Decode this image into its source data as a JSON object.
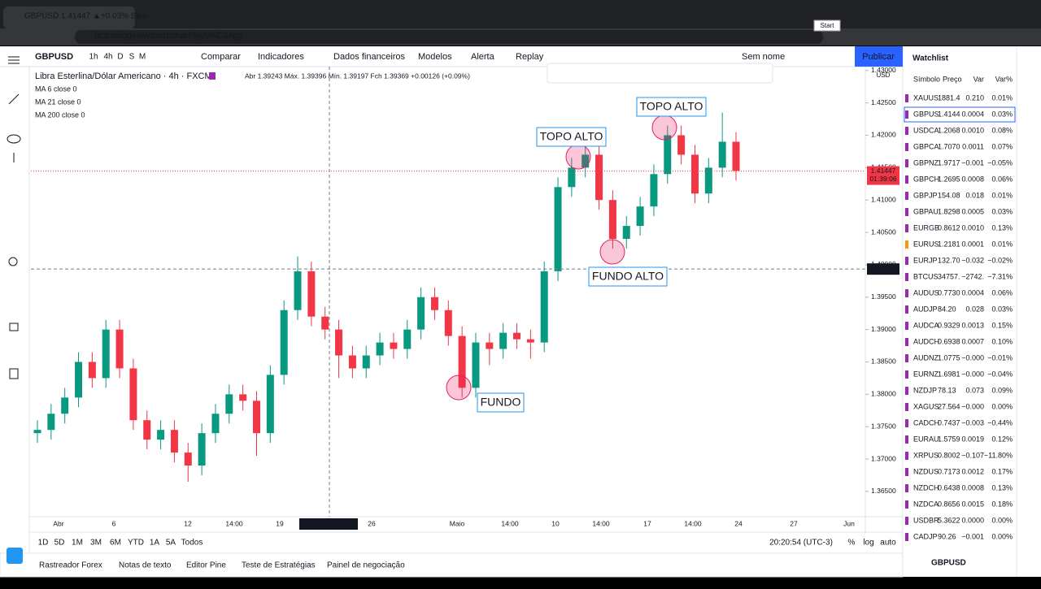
{
  "browser": {
    "tab_title": "GBPUSD 1.41447 ▲+0.03% Sem",
    "url": "br.tradingview.com/chart/NySKCSNg/",
    "tooltip": "Start"
  },
  "toolbar": {
    "symbol": "GBPUSD",
    "intervals": [
      "1h",
      "4h",
      "D",
      "S",
      "M"
    ],
    "buttons": [
      "Comparar",
      "Indicadores",
      "Dados financeiros",
      "Modelos",
      "Alerta",
      "Replay"
    ],
    "layout_name": "Sem nome",
    "publish": "Publicar"
  },
  "legend": {
    "title": "Libra Esterlina/Dólar Americano · 4h · FXCM",
    "ohlc": "Abr 1.39243  Máx. 1.39396  Mín. 1.39197  Fch 1.39369  +0.00126 (+0.09%)",
    "indicators": [
      "MA 6 close 0",
      "MA 21 close 0",
      "MA 200 close 0"
    ]
  },
  "chart": {
    "type": "candlestick",
    "ylim": [
      1.3611,
      1.4306
    ],
    "axis_unit": "USD",
    "yticks": [
      {
        "value": 1.365,
        "label": "1.36500"
      },
      {
        "value": 1.37,
        "label": "1.37000"
      },
      {
        "value": 1.375,
        "label": "1.37500"
      },
      {
        "value": 1.38,
        "label": "1.38000"
      },
      {
        "value": 1.385,
        "label": "1.38500"
      },
      {
        "value": 1.39,
        "label": "1.39000"
      },
      {
        "value": 1.395,
        "label": "1.39500"
      },
      {
        "value": 1.4,
        "label": "1.40000"
      },
      {
        "value": 1.405,
        "label": "1.40500"
      },
      {
        "value": 1.41,
        "label": "1.41000"
      },
      {
        "value": 1.415,
        "label": "1.41500"
      },
      {
        "value": 1.42,
        "label": "1.42000"
      },
      {
        "value": 1.425,
        "label": "1.42500"
      },
      {
        "value": 1.43,
        "label": "1.43000"
      }
    ],
    "candles": {
      "open": [
        1.374,
        1.3745,
        1.377,
        1.3795,
        1.385,
        1.3825,
        1.39,
        1.384,
        1.376,
        1.373,
        1.3745,
        1.371,
        1.369,
        1.374,
        1.377,
        1.38,
        1.379,
        1.374,
        1.383,
        1.393,
        1.399,
        1.392,
        1.39,
        1.386,
        1.384,
        1.386,
        1.388,
        1.387,
        1.39,
        1.395,
        1.393,
        1.389,
        1.381,
        1.388,
        1.387,
        1.3895,
        1.3885,
        1.388,
        1.399,
        1.412,
        1.415,
        1.417,
        1.41,
        1.404,
        1.406,
        1.409,
        1.414,
        1.42,
        1.417,
        1.411,
        1.415,
        1.419
      ],
      "high": [
        1.376,
        1.3785,
        1.381,
        1.3865,
        1.3865,
        1.3915,
        1.3915,
        1.3855,
        1.3775,
        1.376,
        1.376,
        1.3725,
        1.3755,
        1.3785,
        1.3815,
        1.3815,
        1.3805,
        1.3845,
        1.3945,
        1.4013,
        1.4005,
        1.3935,
        1.3915,
        1.3875,
        1.3875,
        1.3895,
        1.3895,
        1.3915,
        1.3965,
        1.3965,
        1.3945,
        1.3905,
        1.3895,
        1.3895,
        1.391,
        1.391,
        1.39,
        1.4005,
        1.4135,
        1.4165,
        1.4185,
        1.4185,
        1.4115,
        1.4075,
        1.4105,
        1.4155,
        1.4215,
        1.4215,
        1.4185,
        1.4165,
        1.4235,
        1.4205
      ],
      "low": [
        1.3725,
        1.373,
        1.3755,
        1.378,
        1.381,
        1.381,
        1.3825,
        1.3745,
        1.3715,
        1.3715,
        1.3695,
        1.3665,
        1.3675,
        1.3725,
        1.3755,
        1.3775,
        1.3705,
        1.3725,
        1.3815,
        1.3915,
        1.3905,
        1.3885,
        1.3825,
        1.3825,
        1.3825,
        1.3845,
        1.3855,
        1.3855,
        1.3885,
        1.3915,
        1.3875,
        1.3795,
        1.3795,
        1.3845,
        1.3855,
        1.387,
        1.3855,
        1.3865,
        1.3975,
        1.4105,
        1.4135,
        1.4085,
        1.4025,
        1.4025,
        1.4045,
        1.4075,
        1.4125,
        1.4155,
        1.4095,
        1.4095,
        1.4135,
        1.413
      ],
      "close": [
        1.3745,
        1.377,
        1.3795,
        1.385,
        1.3825,
        1.39,
        1.384,
        1.376,
        1.373,
        1.3745,
        1.371,
        1.369,
        1.374,
        1.377,
        1.38,
        1.379,
        1.374,
        1.383,
        1.393,
        1.399,
        1.392,
        1.39,
        1.386,
        1.384,
        1.386,
        1.388,
        1.387,
        1.39,
        1.395,
        1.393,
        1.389,
        1.381,
        1.388,
        1.387,
        1.3895,
        1.3885,
        1.388,
        1.399,
        1.412,
        1.415,
        1.417,
        1.41,
        1.404,
        1.406,
        1.409,
        1.414,
        1.42,
        1.417,
        1.411,
        1.415,
        1.419,
        1.4145
      ]
    },
    "last_price": {
      "value": 1.41447,
      "label": "1.41447"
    },
    "countdown": "01:39:06",
    "crosshair": {
      "value": 1.39934,
      "label": "1.39934"
    },
    "crosshair_time": "21 Abr '21   18:00",
    "time_labels": [
      "Abr",
      "6",
      "12",
      "14:00",
      "19",
      "26",
      "Maio",
      "14:00",
      "10",
      "14:00",
      "17",
      "14:00",
      "24",
      "27",
      "Jun"
    ],
    "annotations": [
      "TOPO ALTO",
      "TOPO ALTO",
      "FUNDO ALTO",
      "FUNDO"
    ]
  },
  "bottom_bar": {
    "ranges": [
      "1D",
      "5D",
      "1M",
      "3M",
      "6M",
      "YTD",
      "1A",
      "5A",
      "Todos"
    ],
    "clock": "20:20:54 (UTC-3)",
    "options": [
      "%",
      "log",
      "auto"
    ]
  },
  "tabs": [
    "Rastreador Forex",
    "Notas de texto",
    "Editor Pine",
    "Teste de Estratégias",
    "Painel de negociação"
  ],
  "watchlist": {
    "title": "Watchlist",
    "columns": [
      "Símbolo",
      "Preço",
      "Var",
      "Var%"
    ],
    "rows": [
      [
        "XAUUS",
        "1881.4",
        "0.210",
        "0.01%"
      ],
      [
        "GBPUS",
        "1.4144",
        "0.0004",
        "0.03%"
      ],
      [
        "USDCA",
        "1.2068",
        "0.0010",
        "0.08%"
      ],
      [
        "GBPCA",
        "1.7070",
        "0.0011",
        "0.07%"
      ],
      [
        "GBPNZ",
        "1.9717",
        "−0.001",
        "−0.05%"
      ],
      [
        "GBPCH",
        "1.2695",
        "0.0008",
        "0.06%"
      ],
      [
        "GBPJP",
        "154.08",
        "0.018",
        "0.01%"
      ],
      [
        "GBPAU",
        "1.8298",
        "0.0005",
        "0.03%"
      ],
      [
        "EURGB",
        "0.8612",
        "0.0010",
        "0.13%"
      ],
      [
        "EURUS",
        "1.2181",
        "0.0001",
        "0.01%"
      ],
      [
        "EURJP",
        "132.70",
        "−0.032",
        "−0.02%"
      ],
      [
        "BTCUS",
        "34757.",
        "−2742.",
        "−7.31%"
      ],
      [
        "AUDUS",
        "0.7730",
        "0.0004",
        "0.06%"
      ],
      [
        "AUDJP",
        "84.20",
        "0.028",
        "0.03%"
      ],
      [
        "AUDCA",
        "0.9329",
        "0.0013",
        "0.15%"
      ],
      [
        "AUDCH",
        "0.6938",
        "0.0007",
        "0.10%"
      ],
      [
        "AUDNZ",
        "1.0775",
        "−0.000",
        "−0.01%"
      ],
      [
        "EURNZ",
        "1.6981",
        "−0.000",
        "−0.04%"
      ],
      [
        "NZDJP",
        "78.13",
        "0.073",
        "0.09%"
      ],
      [
        "XAGUS",
        "27.564",
        "−0.000",
        "0.00%"
      ],
      [
        "CADCH",
        "0.7437",
        "−0.003",
        "−0.44%"
      ],
      [
        "EURAU",
        "1.5759",
        "0.0019",
        "0.12%"
      ],
      [
        "XRPUS",
        "0.8002",
        "−0.107",
        "−11.80%"
      ],
      [
        "NZDUS",
        "0.7173",
        "0.0012",
        "0.17%"
      ],
      [
        "NZDCH",
        "0.6438",
        "0.0008",
        "0.13%"
      ],
      [
        "NZDCA",
        "0.8656",
        "0.0015",
        "0.18%"
      ],
      [
        "USDBR",
        "5.3622",
        "0.0000",
        "0.00%"
      ],
      [
        "CADJP",
        "90.26",
        "−0.001",
        "0.00%"
      ]
    ],
    "footer": "GBPUSD"
  }
}
